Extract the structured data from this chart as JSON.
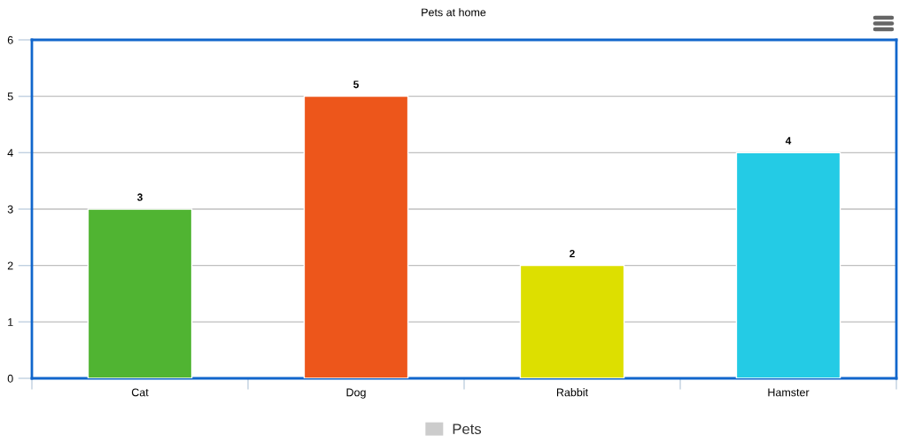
{
  "chart_data": {
    "type": "bar",
    "title": "Pets at home",
    "categories": [
      "Cat",
      "Dog",
      "Rabbit",
      "Hamster"
    ],
    "series": [
      {
        "name": "Pets",
        "color": "#cccccc",
        "colors": [
          "#50b432",
          "#ed561b",
          "#dddf00",
          "#24cbe5"
        ],
        "values": [
          3,
          5,
          2,
          4
        ]
      }
    ],
    "ylim": [
      0,
      6
    ],
    "yticks": [
      0,
      1,
      2,
      3,
      4,
      5,
      6
    ],
    "grid": "y",
    "legend": "bottom",
    "data_labels": true
  }
}
